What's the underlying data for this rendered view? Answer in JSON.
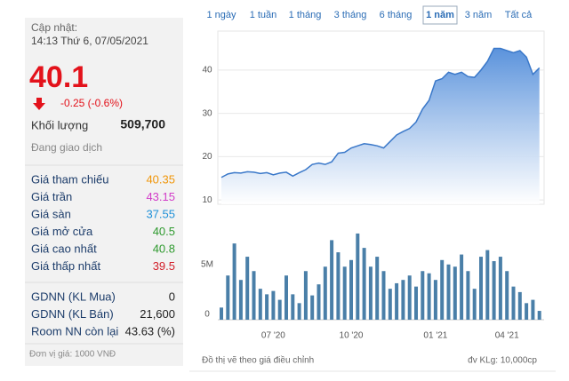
{
  "panel": {
    "updated_label": "Cập nhật:",
    "updated_time": "14:13 Thứ 6, 07/05/2021",
    "price": "40.1",
    "change": "-0.25 (-0.6%)",
    "volume_label": "Khối lượng",
    "volume": "509,700",
    "status": "Đang giao dịch",
    "prices": [
      {
        "label": "Giá tham chiếu",
        "value": "40.35",
        "color": "#f0960a"
      },
      {
        "label": "Giá trần",
        "value": "43.15",
        "color": "#d23cc8"
      },
      {
        "label": "Giá sàn",
        "value": "37.55",
        "color": "#1e90d8"
      },
      {
        "label": "Giá mở cửa",
        "value": "40.5",
        "color": "#2e9a2e"
      },
      {
        "label": "Giá cao nhất",
        "value": "40.8",
        "color": "#2e9a2e"
      },
      {
        "label": "Giá thấp nhất",
        "value": "39.5",
        "color": "#d21f2a"
      }
    ],
    "foreign": [
      {
        "label": "GDNN (KL Mua)",
        "value": "0"
      },
      {
        "label": "GDNN (KL Bán)",
        "value": "21,600"
      },
      {
        "label": "Room NN còn lại",
        "value": "43.63 (%)"
      }
    ],
    "unit": "Đơn vị giá: 1000 VNĐ"
  },
  "tabs": {
    "items": [
      "1 ngày",
      "1 tuần",
      "1 tháng",
      "3 tháng",
      "6 tháng",
      "1 năm",
      "3 năm",
      "Tất cả"
    ],
    "active": 5
  },
  "footer": {
    "note": "Đồ thị vẽ theo giá điều chỉnh",
    "volume_unit": "đv KLg: 10,000cp"
  },
  "chart_data": [
    {
      "type": "area",
      "color": "#3a78c9",
      "ylim": [
        9,
        49
      ],
      "yticks": [
        10,
        20,
        30,
        40
      ],
      "grid": true,
      "values": [
        15.2,
        16,
        16.3,
        16.2,
        16.5,
        16.4,
        16.1,
        16.3,
        15.8,
        16.2,
        16.4,
        15.5,
        16.3,
        17,
        18.2,
        18.5,
        18.2,
        18.8,
        20.8,
        21,
        22,
        22.5,
        23,
        22.8,
        22.5,
        22,
        23.5,
        25,
        25.8,
        26.5,
        28,
        31,
        33,
        37.5,
        38,
        39.5,
        39,
        39.5,
        38.5,
        38.3,
        40,
        42,
        45,
        45,
        44.5,
        44,
        44.5,
        43,
        39,
        40.5
      ]
    },
    {
      "type": "bar",
      "color": "#4a7fa8",
      "ylim": [
        0,
        9000000
      ],
      "yticks": [
        0,
        {
          "value": 5000000,
          "label": "5M"
        }
      ],
      "categories": [
        null,
        null,
        null,
        null,
        null,
        null,
        null,
        null,
        "07 '20",
        null,
        null,
        null,
        null,
        null,
        null,
        null,
        null,
        null,
        null,
        null,
        "10 '20",
        null,
        null,
        null,
        null,
        null,
        null,
        null,
        null,
        null,
        null,
        null,
        null,
        "01 '21",
        null,
        null,
        null,
        null,
        null,
        null,
        null,
        null,
        null,
        null,
        "04 '21",
        null,
        null,
        null,
        null,
        null
      ],
      "values": [
        1100000,
        4000000,
        6900000,
        3600000,
        5700000,
        4400000,
        2800000,
        2300000,
        2600000,
        1800000,
        4000000,
        2300000,
        1500000,
        4400000,
        2200000,
        3200000,
        4800000,
        7200000,
        6100000,
        4800000,
        5400000,
        7800000,
        6500000,
        4800000,
        5700000,
        4400000,
        2800000,
        3300000,
        3600000,
        4000000,
        3000000,
        4400000,
        4200000,
        3600000,
        5400000,
        5000000,
        4800000,
        5900000,
        4400000,
        2800000,
        5700000,
        6300000,
        5300000,
        5700000,
        4400000,
        3000000,
        2500000,
        1500000,
        1800000,
        800000
      ]
    }
  ]
}
